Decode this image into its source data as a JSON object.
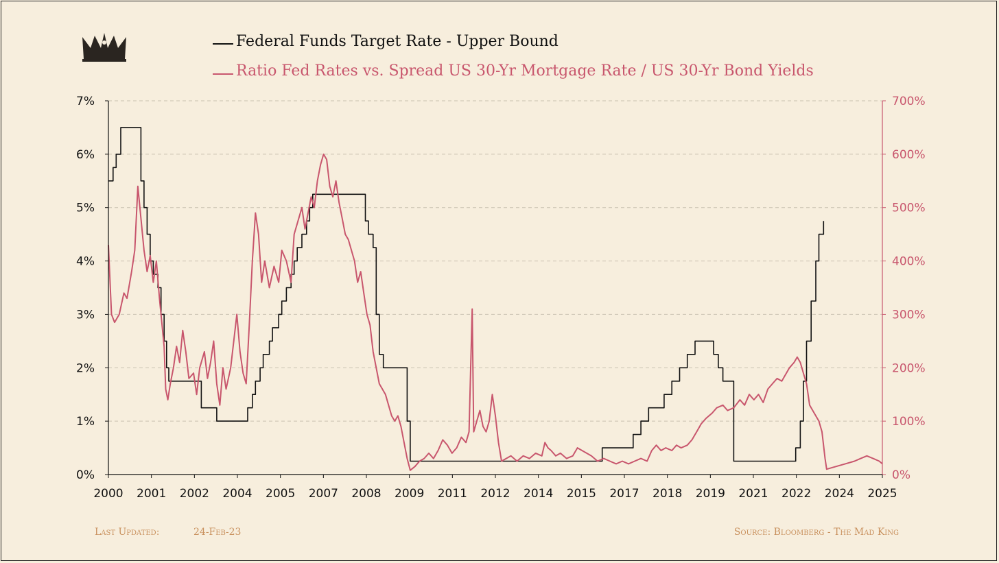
{
  "colors": {
    "background": "#f7eedd",
    "fed_line": "#111111",
    "ratio_line": "#c8566d",
    "grid": "#c9c1b0",
    "footer": "#c9915e",
    "logo": "#2a2520"
  },
  "legend": {
    "fed": "Federal Funds Target Rate - Upper Bound",
    "ratio": "Ratio Fed Rates vs. Spread US 30-Yr Mortgage Rate / US 30-Yr Bond Yields"
  },
  "logo_icon": "crown-icon",
  "footer": {
    "updated_label": "Last Updated:",
    "updated_value": "24-Feb-23",
    "source": "Source: Bloomberg - The Mad King"
  },
  "chart_data": {
    "type": "line",
    "x_ticks": [
      "2000",
      "2001",
      "2002",
      "2004",
      "2005",
      "2007",
      "2008",
      "2009",
      "2011",
      "2012",
      "2014",
      "2015",
      "2017",
      "2018",
      "2019",
      "2021",
      "2022",
      "2024",
      "2025"
    ],
    "xlim": [
      2000,
      2025
    ],
    "y_left_ticks": [
      "0%",
      "1%",
      "2%",
      "3%",
      "4%",
      "5%",
      "6%",
      "7%"
    ],
    "y_left_lim": [
      0,
      7
    ],
    "y_right_ticks": [
      "0%",
      "100%",
      "200%",
      "300%",
      "400%",
      "500%",
      "600%",
      "700%"
    ],
    "y_right_lim": [
      0,
      700
    ],
    "grid": "horizontal dashed",
    "series": [
      {
        "name": "Federal Funds Target Rate - Upper Bound",
        "axis": "left",
        "step": true,
        "points": [
          [
            2000.0,
            5.5
          ],
          [
            2000.15,
            5.75
          ],
          [
            2000.25,
            6.0
          ],
          [
            2000.4,
            6.5
          ],
          [
            2001.05,
            5.5
          ],
          [
            2001.15,
            5.0
          ],
          [
            2001.25,
            4.5
          ],
          [
            2001.35,
            4.0
          ],
          [
            2001.45,
            3.75
          ],
          [
            2001.6,
            3.5
          ],
          [
            2001.7,
            3.0
          ],
          [
            2001.8,
            2.5
          ],
          [
            2001.88,
            2.0
          ],
          [
            2001.95,
            1.75
          ],
          [
            2003.0,
            1.25
          ],
          [
            2003.5,
            1.0
          ],
          [
            2004.5,
            1.25
          ],
          [
            2004.65,
            1.5
          ],
          [
            2004.75,
            1.75
          ],
          [
            2004.9,
            2.0
          ],
          [
            2005.0,
            2.25
          ],
          [
            2005.2,
            2.5
          ],
          [
            2005.3,
            2.75
          ],
          [
            2005.5,
            3.0
          ],
          [
            2005.6,
            3.25
          ],
          [
            2005.75,
            3.5
          ],
          [
            2005.9,
            3.75
          ],
          [
            2006.0,
            4.0
          ],
          [
            2006.1,
            4.25
          ],
          [
            2006.25,
            4.5
          ],
          [
            2006.4,
            4.75
          ],
          [
            2006.5,
            5.0
          ],
          [
            2006.6,
            5.25
          ],
          [
            2008.3,
            4.75
          ],
          [
            2008.4,
            4.5
          ],
          [
            2008.55,
            4.25
          ],
          [
            2008.65,
            3.0
          ],
          [
            2008.75,
            2.25
          ],
          [
            2008.88,
            2.0
          ],
          [
            2009.65,
            1.0
          ],
          [
            2009.75,
            0.25
          ],
          [
            2015.95,
            0.5
          ],
          [
            2016.95,
            0.75
          ],
          [
            2017.2,
            1.0
          ],
          [
            2017.45,
            1.25
          ],
          [
            2017.95,
            1.5
          ],
          [
            2018.2,
            1.75
          ],
          [
            2018.45,
            2.0
          ],
          [
            2018.7,
            2.25
          ],
          [
            2018.95,
            2.5
          ],
          [
            2019.55,
            2.25
          ],
          [
            2019.7,
            2.0
          ],
          [
            2019.85,
            1.75
          ],
          [
            2020.2,
            0.25
          ],
          [
            2022.2,
            0.5
          ],
          [
            2022.35,
            1.0
          ],
          [
            2022.45,
            1.75
          ],
          [
            2022.55,
            2.5
          ],
          [
            2022.7,
            3.25
          ],
          [
            2022.85,
            4.0
          ],
          [
            2022.95,
            4.5
          ],
          [
            2023.1,
            4.75
          ]
        ]
      },
      {
        "name": "Ratio Fed Rates vs. Spread US 30-Yr Mortgage Rate / US 30-Yr Bond Yields",
        "axis": "right",
        "step": false,
        "points": [
          [
            2000.0,
            430
          ],
          [
            2000.1,
            300
          ],
          [
            2000.2,
            285
          ],
          [
            2000.35,
            300
          ],
          [
            2000.5,
            340
          ],
          [
            2000.6,
            330
          ],
          [
            2000.75,
            380
          ],
          [
            2000.85,
            420
          ],
          [
            2000.95,
            540
          ],
          [
            2001.05,
            480
          ],
          [
            2001.15,
            420
          ],
          [
            2001.25,
            380
          ],
          [
            2001.35,
            410
          ],
          [
            2001.45,
            360
          ],
          [
            2001.55,
            400
          ],
          [
            2001.65,
            330
          ],
          [
            2001.8,
            240
          ],
          [
            2001.85,
            160
          ],
          [
            2001.92,
            140
          ],
          [
            2002.0,
            170
          ],
          [
            2002.1,
            200
          ],
          [
            2002.2,
            240
          ],
          [
            2002.3,
            210
          ],
          [
            2002.4,
            270
          ],
          [
            2002.5,
            230
          ],
          [
            2002.6,
            180
          ],
          [
            2002.75,
            190
          ],
          [
            2002.85,
            150
          ],
          [
            2002.95,
            200
          ],
          [
            2003.1,
            230
          ],
          [
            2003.2,
            180
          ],
          [
            2003.3,
            210
          ],
          [
            2003.4,
            250
          ],
          [
            2003.5,
            170
          ],
          [
            2003.6,
            130
          ],
          [
            2003.7,
            200
          ],
          [
            2003.8,
            160
          ],
          [
            2003.95,
            200
          ],
          [
            2004.05,
            250
          ],
          [
            2004.15,
            300
          ],
          [
            2004.25,
            230
          ],
          [
            2004.35,
            190
          ],
          [
            2004.45,
            170
          ],
          [
            2004.55,
            280
          ],
          [
            2004.65,
            400
          ],
          [
            2004.75,
            490
          ],
          [
            2004.85,
            450
          ],
          [
            2004.95,
            360
          ],
          [
            2005.05,
            400
          ],
          [
            2005.2,
            350
          ],
          [
            2005.35,
            390
          ],
          [
            2005.5,
            360
          ],
          [
            2005.6,
            420
          ],
          [
            2005.75,
            400
          ],
          [
            2005.9,
            360
          ],
          [
            2006.0,
            450
          ],
          [
            2006.1,
            470
          ],
          [
            2006.25,
            500
          ],
          [
            2006.35,
            460
          ],
          [
            2006.45,
            490
          ],
          [
            2006.55,
            520
          ],
          [
            2006.65,
            500
          ],
          [
            2006.75,
            550
          ],
          [
            2006.85,
            580
          ],
          [
            2006.95,
            600
          ],
          [
            2007.05,
            590
          ],
          [
            2007.15,
            540
          ],
          [
            2007.25,
            520
          ],
          [
            2007.35,
            550
          ],
          [
            2007.45,
            510
          ],
          [
            2007.55,
            480
          ],
          [
            2007.65,
            450
          ],
          [
            2007.75,
            440
          ],
          [
            2007.85,
            420
          ],
          [
            2007.95,
            400
          ],
          [
            2008.05,
            360
          ],
          [
            2008.15,
            380
          ],
          [
            2008.25,
            340
          ],
          [
            2008.35,
            300
          ],
          [
            2008.45,
            280
          ],
          [
            2008.55,
            230
          ],
          [
            2008.65,
            200
          ],
          [
            2008.75,
            170
          ],
          [
            2008.85,
            160
          ],
          [
            2008.95,
            150
          ],
          [
            2009.05,
            130
          ],
          [
            2009.15,
            110
          ],
          [
            2009.25,
            100
          ],
          [
            2009.35,
            110
          ],
          [
            2009.45,
            90
          ],
          [
            2009.55,
            60
          ],
          [
            2009.65,
            30
          ],
          [
            2009.75,
            8
          ],
          [
            2009.9,
            15
          ],
          [
            2010.05,
            25
          ],
          [
            2010.2,
            30
          ],
          [
            2010.35,
            40
          ],
          [
            2010.5,
            30
          ],
          [
            2010.65,
            45
          ],
          [
            2010.8,
            65
          ],
          [
            2010.95,
            55
          ],
          [
            2011.1,
            40
          ],
          [
            2011.25,
            50
          ],
          [
            2011.4,
            70
          ],
          [
            2011.55,
            60
          ],
          [
            2011.65,
            80
          ],
          [
            2011.75,
            310
          ],
          [
            2011.8,
            80
          ],
          [
            2011.9,
            100
          ],
          [
            2012.0,
            120
          ],
          [
            2012.1,
            90
          ],
          [
            2012.2,
            80
          ],
          [
            2012.3,
            100
          ],
          [
            2012.4,
            150
          ],
          [
            2012.5,
            110
          ],
          [
            2012.6,
            60
          ],
          [
            2012.7,
            25
          ],
          [
            2012.85,
            30
          ],
          [
            2013.0,
            35
          ],
          [
            2013.2,
            25
          ],
          [
            2013.4,
            35
          ],
          [
            2013.6,
            30
          ],
          [
            2013.8,
            40
          ],
          [
            2014.0,
            35
          ],
          [
            2014.1,
            60
          ],
          [
            2014.2,
            50
          ],
          [
            2014.3,
            45
          ],
          [
            2014.45,
            35
          ],
          [
            2014.6,
            40
          ],
          [
            2014.8,
            30
          ],
          [
            2015.0,
            35
          ],
          [
            2015.15,
            50
          ],
          [
            2015.3,
            45
          ],
          [
            2015.45,
            40
          ],
          [
            2015.6,
            35
          ],
          [
            2015.8,
            25
          ],
          [
            2016.0,
            30
          ],
          [
            2016.2,
            25
          ],
          [
            2016.4,
            20
          ],
          [
            2016.6,
            25
          ],
          [
            2016.8,
            20
          ],
          [
            2017.0,
            25
          ],
          [
            2017.2,
            30
          ],
          [
            2017.4,
            25
          ],
          [
            2017.55,
            45
          ],
          [
            2017.7,
            55
          ],
          [
            2017.85,
            45
          ],
          [
            2018.0,
            50
          ],
          [
            2018.2,
            45
          ],
          [
            2018.35,
            55
          ],
          [
            2018.5,
            50
          ],
          [
            2018.7,
            55
          ],
          [
            2018.85,
            65
          ],
          [
            2019.0,
            80
          ],
          [
            2019.15,
            95
          ],
          [
            2019.3,
            105
          ],
          [
            2019.5,
            115
          ],
          [
            2019.65,
            125
          ],
          [
            2019.85,
            130
          ],
          [
            2020.0,
            120
          ],
          [
            2020.2,
            125
          ],
          [
            2020.4,
            140
          ],
          [
            2020.55,
            130
          ],
          [
            2020.7,
            150
          ],
          [
            2020.85,
            140
          ],
          [
            2021.0,
            150
          ],
          [
            2021.15,
            135
          ],
          [
            2021.3,
            160
          ],
          [
            2021.45,
            170
          ],
          [
            2021.6,
            180
          ],
          [
            2021.75,
            175
          ],
          [
            2021.9,
            190
          ],
          [
            2022.0,
            200
          ],
          [
            2022.15,
            210
          ],
          [
            2022.25,
            220
          ],
          [
            2022.35,
            210
          ],
          [
            2022.45,
            190
          ],
          [
            2022.55,
            170
          ],
          [
            2022.65,
            130
          ],
          [
            2022.75,
            120
          ],
          [
            2022.85,
            110
          ],
          [
            2022.95,
            100
          ],
          [
            2023.05,
            80
          ],
          [
            2023.15,
            30
          ],
          [
            2023.2,
            10
          ],
          [
            2023.5,
            15
          ],
          [
            2023.8,
            20
          ],
          [
            2024.1,
            25
          ],
          [
            2024.3,
            30
          ],
          [
            2024.5,
            35
          ],
          [
            2024.7,
            30
          ],
          [
            2024.9,
            25
          ],
          [
            2025.0,
            20
          ]
        ]
      }
    ]
  }
}
